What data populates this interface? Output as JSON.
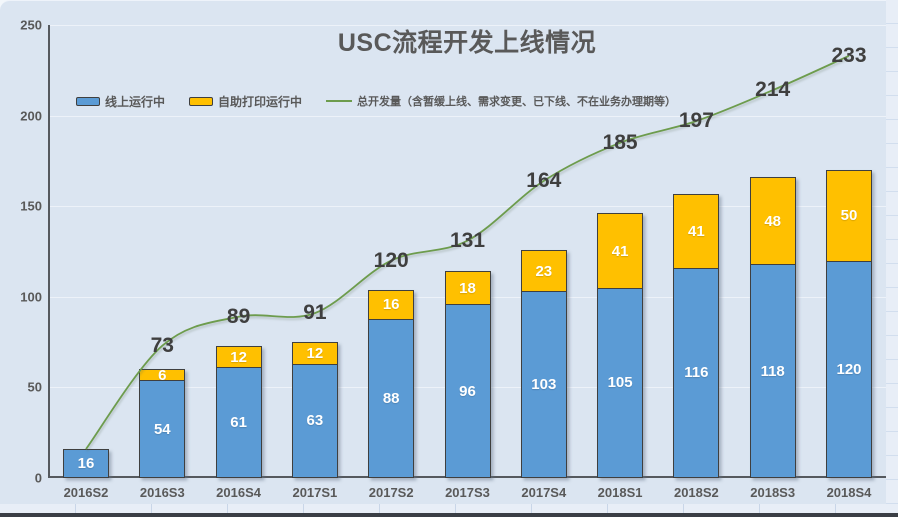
{
  "title": "USC流程开发上线情况",
  "legend": {
    "items": [
      {
        "label": "线上运行中",
        "swatch": "box",
        "color": "#5b9bd5"
      },
      {
        "label": "自助打印运行中",
        "swatch": "box",
        "color": "#ffc000"
      },
      {
        "label": "总开发量（含暂缓上线、需求变更、已下线、不在业务办理期等）",
        "swatch": "line",
        "color": "#6d9c4d"
      }
    ]
  },
  "y_axis": {
    "tick_labels": [
      "250",
      "200",
      "150",
      "100",
      "50",
      "0"
    ]
  },
  "colors": {
    "background": "#dbe5f1",
    "bar_blue": "#5b9bd5",
    "bar_orange": "#ffc000",
    "line_green": "#6d9c4d",
    "axis": "#55595e",
    "label_gray": "#595959",
    "line_label": "#3f3f3f",
    "bar_border": "#3f3f3f"
  },
  "chart_data": {
    "type": "combo",
    "title": "USC流程开发上线情况",
    "categories": [
      "2016S2",
      "2016S3",
      "2016S4",
      "2017S1",
      "2017S2",
      "2017S3",
      "2017S4",
      "2018S1",
      "2018S2",
      "2018S3",
      "2018S4"
    ],
    "series": [
      {
        "name": "线上运行中",
        "chart": "stacked-bar",
        "color": "#5b9bd5",
        "values": [
          16,
          54,
          61,
          63,
          88,
          96,
          103,
          105,
          116,
          118,
          120
        ]
      },
      {
        "name": "自助打印运行中",
        "chart": "stacked-bar",
        "color": "#ffc000",
        "values": [
          0,
          6,
          12,
          12,
          16,
          18,
          23,
          41,
          41,
          48,
          50
        ]
      },
      {
        "name": "总开发量（含暂缓上线、需求变更、已下线、不在业务办理期等）",
        "chart": "line",
        "color": "#6d9c4d",
        "values": [
          16,
          73,
          89,
          91,
          120,
          131,
          164,
          185,
          197,
          214,
          233
        ],
        "first_point_unlabeled": true
      }
    ],
    "ylim": [
      0,
      250
    ],
    "y_ticks": [
      0,
      50,
      100,
      150,
      200,
      250
    ],
    "grid": "horizontal",
    "legend_position": "top-left",
    "smoothed_line": true
  }
}
